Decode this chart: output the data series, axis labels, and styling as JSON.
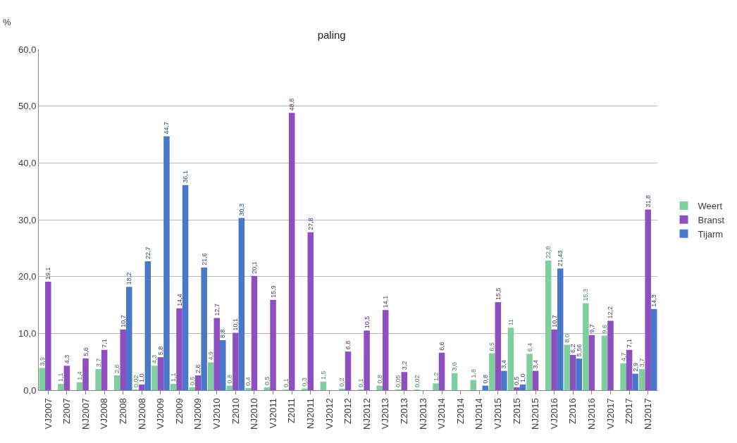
{
  "chart_data": {
    "type": "bar",
    "title": "paling",
    "ylabel": "%",
    "categories": [
      "VJ2007",
      "Z2007",
      "NJ2007",
      "VJ2008",
      "Z2008",
      "NJ2008",
      "VJ2009",
      "Z2009",
      "NJ2009",
      "VJ2010",
      "Z2010",
      "NJ2010",
      "VJ2011",
      "Z2011",
      "NJ2011",
      "VJ2012",
      "Z2012",
      "NJ2012",
      "VJ2013",
      "Z2013",
      "NJ2013",
      "VJ2014",
      "Z2014",
      "NJ2014",
      "VJ2015",
      "Z2015",
      "NJ2015",
      "VJ2016",
      "Z2016",
      "NJ2016",
      "VJ2017",
      "Z2017",
      "NJ2017"
    ],
    "series": [
      {
        "name": "Weert",
        "color": "#7fcf9e",
        "values": [
          3.9,
          1.1,
          1.4,
          3.7,
          2.6,
          0.02,
          4.3,
          1.1,
          0.5,
          4.9,
          0.8,
          0.4,
          0.5,
          0.1,
          0.3,
          1.5,
          0.2,
          0.1,
          0.8,
          0.05,
          0.02,
          1.2,
          3.0,
          1.8,
          6.5,
          11,
          6.4,
          22.8,
          8.0,
          15.3,
          9.6,
          4.7,
          3.7
        ],
        "value_labels": [
          "3,9",
          "1,1",
          "1,4",
          "3,7",
          "2,6",
          "0,02",
          "4,3",
          "1,1",
          "0,5",
          "4,9",
          "0,8",
          "0,4",
          "0,5",
          "0,1",
          "0,3",
          "1,5",
          "0,2",
          "0,1",
          "0,8",
          "0,05",
          "0,02",
          "1,2",
          "3,0",
          "1,8",
          "6,5",
          "11",
          "6,4",
          "22,8",
          "8,0",
          "15,3",
          "9,6",
          "4,7",
          "3,7"
        ]
      },
      {
        "name": "Branst",
        "color": "#8e4fc0",
        "values": [
          19.1,
          4.3,
          5.6,
          7.1,
          10.7,
          1.0,
          5.8,
          14.4,
          2.6,
          12.7,
          10.1,
          20.1,
          15.9,
          48.8,
          27.8,
          null,
          6.8,
          10.5,
          14.1,
          3.2,
          null,
          6.6,
          null,
          null,
          15.5,
          0.5,
          3.4,
          10.7,
          6.2,
          9.7,
          12.2,
          7.1,
          31.8
        ],
        "value_labels": [
          "19,1",
          "4,3",
          "5,6",
          "7,1",
          "10,7",
          "1,0",
          "5,8",
          "14,4",
          "2,6",
          "12,7",
          "10,1",
          "20,1",
          "15,9",
          "48,8",
          "27,8",
          null,
          "6,8",
          "10,5",
          "14,1",
          "3,2",
          null,
          "6,6",
          null,
          null,
          "15,5",
          "0,5",
          "3,4",
          "10,7",
          "6,2",
          "9,7",
          "12,2",
          "7,1",
          "31,8"
        ]
      },
      {
        "name": "Tijarm",
        "color": "#4a78c8",
        "values": [
          null,
          null,
          null,
          null,
          18.2,
          22.7,
          44.7,
          36.1,
          21.6,
          8.8,
          30.3,
          null,
          null,
          null,
          null,
          null,
          null,
          null,
          null,
          null,
          null,
          null,
          null,
          0.8,
          3.4,
          1.0,
          null,
          21.43,
          5.56,
          null,
          null,
          2.9,
          14.3
        ],
        "value_labels": [
          null,
          null,
          null,
          null,
          "18,2",
          "22,7",
          "44,7",
          "36,1",
          "21,6",
          "8,8",
          "30,3",
          null,
          null,
          null,
          null,
          null,
          null,
          null,
          null,
          null,
          null,
          null,
          null,
          "0,8",
          "3,4",
          "1,0",
          null,
          "21,43",
          "5,56",
          null,
          null,
          "2,9",
          "14,3"
        ]
      }
    ],
    "ylim": [
      0,
      60
    ],
    "yticks": [
      {
        "value": 0,
        "label": "0,0"
      },
      {
        "value": 10,
        "label": "10,0"
      },
      {
        "value": 20,
        "label": "20,0"
      },
      {
        "value": 30,
        "label": "30,0"
      },
      {
        "value": 40,
        "label": "40,0"
      },
      {
        "value": 50,
        "label": "50,0"
      },
      {
        "value": 60,
        "label": "60,0"
      }
    ],
    "grid": "y",
    "legend": "right"
  }
}
